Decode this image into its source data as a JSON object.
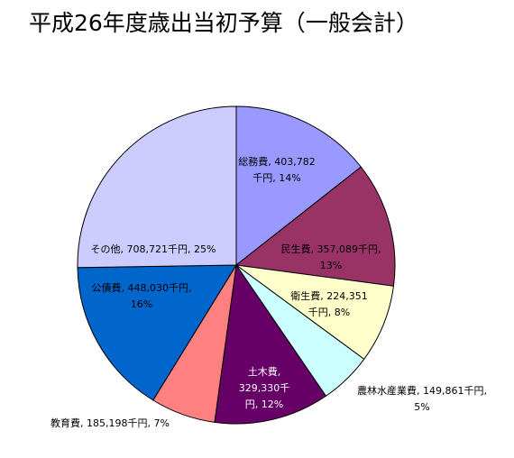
{
  "chart_data": {
    "type": "pie",
    "title": "平成26年度歳出当初予算（一般会計）",
    "unit": "千円",
    "slices": [
      {
        "name": "総務費",
        "value": 403782,
        "percent": 14,
        "color": "#9999ff",
        "label_lines": [
          "総務費, 403,782",
          "千円, 14%"
        ]
      },
      {
        "name": "民生費",
        "value": 357089,
        "percent": 13,
        "color": "#993366",
        "label_lines": [
          "民生費, 357,089千円,",
          "13%"
        ]
      },
      {
        "name": "衛生費",
        "value": 224351,
        "percent": 8,
        "color": "#ffffcc",
        "label_lines": [
          "衛生費, 224,351",
          "千円, 8%"
        ]
      },
      {
        "name": "農林水産業費",
        "value": 149861,
        "percent": 5,
        "color": "#ccffff",
        "label_lines": [
          "農林水産業費, 149,861千円,",
          "5%"
        ]
      },
      {
        "name": "土木費",
        "value": 329330,
        "percent": 12,
        "color": "#660066",
        "label_lines": [
          "土木費,",
          "329,330千",
          "円, 12%"
        ]
      },
      {
        "name": "教育費",
        "value": 185198,
        "percent": 7,
        "color": "#ff8080",
        "label_lines": [
          "教育費, 185,198千円, 7%"
        ]
      },
      {
        "name": "公債費",
        "value": 448030,
        "percent": 16,
        "color": "#0066cc",
        "label_lines": [
          "公債費, 448,030千円,",
          "16%"
        ]
      },
      {
        "name": "その他",
        "value": 708721,
        "percent": 25,
        "color": "#ccccff",
        "label_lines": [
          "その他, 708,721千円, 25%"
        ]
      }
    ]
  }
}
